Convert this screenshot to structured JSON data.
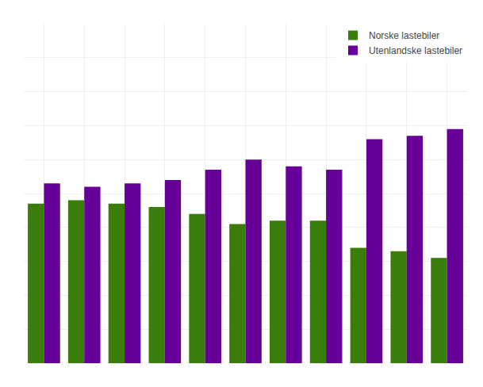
{
  "chart_data": {
    "type": "bar",
    "categories": [
      null,
      null,
      null,
      null,
      null,
      null,
      null,
      null,
      null,
      null,
      null
    ],
    "series": [
      {
        "name": "Norske lastebiler",
        "color": "#3a7d0a",
        "values": [
          47,
          48,
          47,
          46,
          44,
          41,
          42,
          42,
          34,
          33,
          31
        ]
      },
      {
        "name": "Utenlandske lastebiler",
        "color": "#660099",
        "values": [
          53,
          52,
          53,
          54,
          57,
          60,
          58,
          57,
          66,
          67,
          69
        ]
      }
    ],
    "ylim": [
      0,
      100
    ],
    "yticks": [
      0,
      10,
      20,
      30,
      40,
      50,
      60,
      70,
      80,
      90,
      100
    ],
    "grid": true,
    "legend": "upper right",
    "tick_labels": false
  }
}
